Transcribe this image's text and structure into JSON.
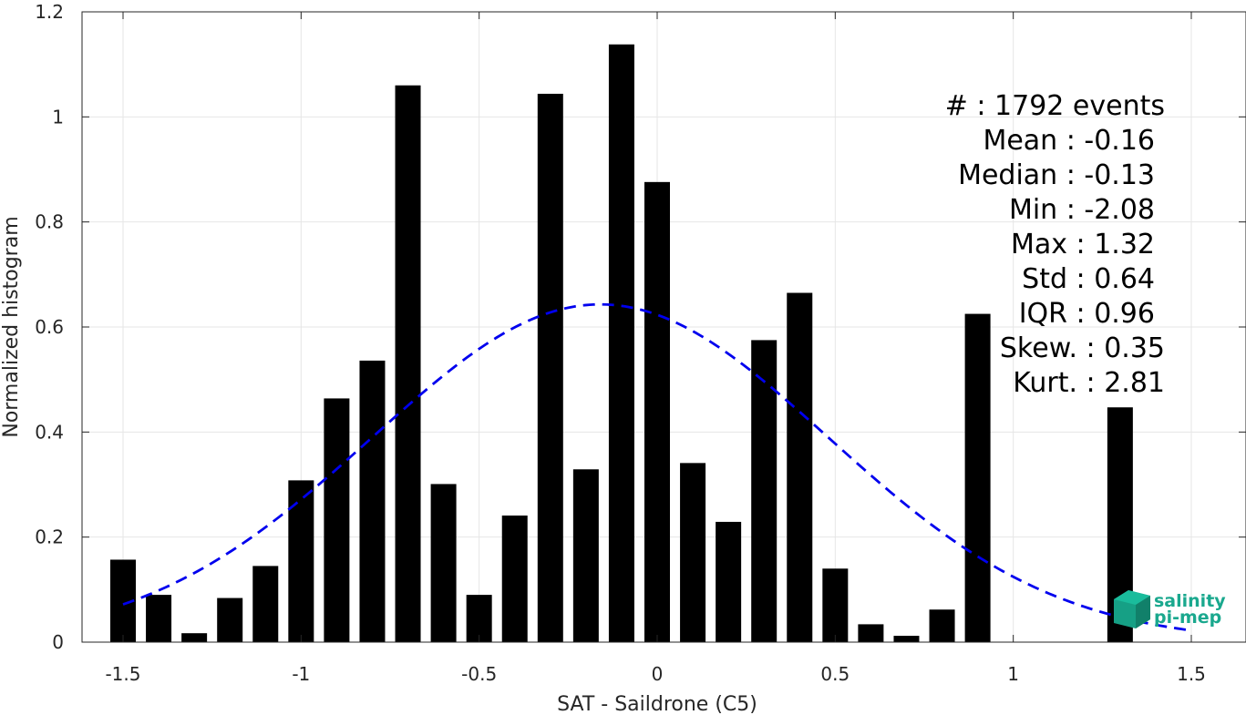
{
  "chart_data": {
    "type": "bar",
    "xlabel": "SAT - Saildrone (C5)",
    "ylabel": "Normalized histogram",
    "xlim": [
      -1.6,
      1.6
    ],
    "ylim": [
      0,
      1.2
    ],
    "xticks": [
      -1.5,
      -1,
      -0.5,
      0,
      0.5,
      1,
      1.5
    ],
    "xtick_labels": [
      "-1.5",
      "-1",
      "-0.5",
      "0",
      "0.5",
      "1",
      "1.5"
    ],
    "yticks": [
      0,
      0.2,
      0.4,
      0.6,
      0.8,
      1,
      1.2
    ],
    "ytick_labels": [
      "0",
      "0.2",
      "0.4",
      "0.6",
      "0.8",
      "1",
      "1.2"
    ],
    "grid": true,
    "bar_color": "#000000",
    "x": [
      -1.5,
      -1.4,
      -1.3,
      -1.2,
      -1.1,
      -1.0,
      -0.9,
      -0.8,
      -0.7,
      -0.6,
      -0.5,
      -0.4,
      -0.3,
      -0.2,
      -0.1,
      0.0,
      0.1,
      0.2,
      0.3,
      0.4,
      0.5,
      0.6,
      0.7,
      0.8,
      0.9,
      1.0,
      1.1,
      1.2,
      1.3
    ],
    "values": [
      0.157,
      0.09,
      0.017,
      0.084,
      0.145,
      0.308,
      0.464,
      0.536,
      1.06,
      0.301,
      0.09,
      0.241,
      1.044,
      0.329,
      1.138,
      0.876,
      0.341,
      0.229,
      0.575,
      0.665,
      0.14,
      0.034,
      0.012,
      0.062,
      0.625,
      0,
      0,
      0,
      0.447
    ],
    "fit_curve": {
      "type": "gaussian",
      "mean": -0.16,
      "std": 0.64,
      "peak": 0.643,
      "style": "dashed",
      "color": "#0000ee",
      "x_range": [
        -1.5,
        1.5
      ]
    },
    "stats": [
      "#  : 1792 events",
      "Mean : -0.16",
      "Median : -0.13",
      "Min : -2.08",
      "Max : 1.32",
      "Std : 0.64",
      "IQR : 0.96",
      "Skew. : 0.35",
      "Kurt. : 2.81"
    ]
  },
  "logo": {
    "line1": "salinity",
    "line2": "pi-mep",
    "color": "#1aa88e"
  }
}
